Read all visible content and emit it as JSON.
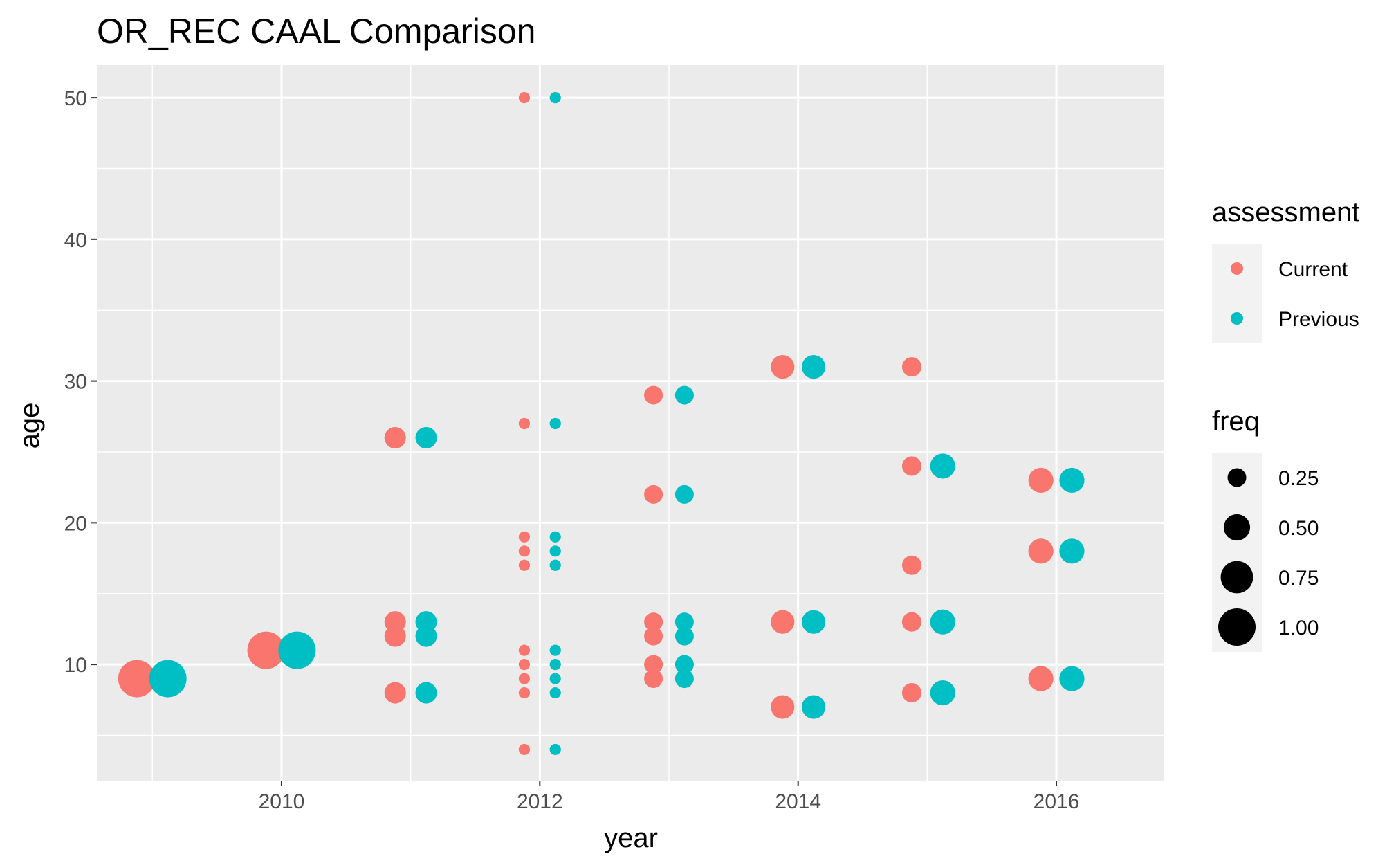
{
  "chart_data": {
    "type": "scatter",
    "title": "OR_REC CAAL Comparison",
    "xlabel": "year",
    "ylabel": "age",
    "xlim": [
      2008.57,
      2016.83
    ],
    "ylim": [
      1.8,
      52.3
    ],
    "x_ticks": [
      2010,
      2012,
      2014,
      2016
    ],
    "y_ticks": [
      10,
      20,
      30,
      40,
      50
    ],
    "grid": true,
    "legend_position": "right",
    "colors": {
      "Current": "#F8766D",
      "Previous": "#00BFC4",
      "panel": "#EBEBEB",
      "grid": "#FFFFFF"
    },
    "color_legend": {
      "title": "assessment",
      "entries": [
        "Current",
        "Previous"
      ]
    },
    "size_legend": {
      "title": "freq",
      "entries": [
        {
          "label": "0.25",
          "value": 0.25
        },
        {
          "label": "0.50",
          "value": 0.5
        },
        {
          "label": "0.75",
          "value": 0.75
        },
        {
          "label": "1.00",
          "value": 1.0
        }
      ]
    },
    "series": [
      {
        "name": "Current",
        "points": [
          {
            "x": 2008.88,
            "y": 9,
            "freq": 1.0
          },
          {
            "x": 2009.88,
            "y": 11,
            "freq": 1.0
          },
          {
            "x": 2010.88,
            "y": 26,
            "freq": 0.33
          },
          {
            "x": 2010.88,
            "y": 13,
            "freq": 0.33
          },
          {
            "x": 2010.88,
            "y": 12,
            "freq": 0.33
          },
          {
            "x": 2010.88,
            "y": 8,
            "freq": 0.33
          },
          {
            "x": 2011.88,
            "y": 50,
            "freq": 0.09
          },
          {
            "x": 2011.88,
            "y": 27,
            "freq": 0.09
          },
          {
            "x": 2011.88,
            "y": 19,
            "freq": 0.09
          },
          {
            "x": 2011.88,
            "y": 18,
            "freq": 0.09
          },
          {
            "x": 2011.88,
            "y": 17,
            "freq": 0.09
          },
          {
            "x": 2011.88,
            "y": 11,
            "freq": 0.09
          },
          {
            "x": 2011.88,
            "y": 10,
            "freq": 0.09
          },
          {
            "x": 2011.88,
            "y": 9,
            "freq": 0.09
          },
          {
            "x": 2011.88,
            "y": 8,
            "freq": 0.09
          },
          {
            "x": 2011.88,
            "y": 4,
            "freq": 0.09
          },
          {
            "x": 2012.88,
            "y": 29,
            "freq": 0.25
          },
          {
            "x": 2012.88,
            "y": 22,
            "freq": 0.25
          },
          {
            "x": 2012.88,
            "y": 13,
            "freq": 0.25
          },
          {
            "x": 2012.88,
            "y": 12,
            "freq": 0.25
          },
          {
            "x": 2012.88,
            "y": 10,
            "freq": 0.25
          },
          {
            "x": 2012.88,
            "y": 9,
            "freq": 0.25
          },
          {
            "x": 2013.88,
            "y": 31,
            "freq": 0.4
          },
          {
            "x": 2013.88,
            "y": 13,
            "freq": 0.4
          },
          {
            "x": 2013.88,
            "y": 7,
            "freq": 0.4
          },
          {
            "x": 2014.88,
            "y": 31,
            "freq": 0.27
          },
          {
            "x": 2014.88,
            "y": 24,
            "freq": 0.27
          },
          {
            "x": 2014.88,
            "y": 17,
            "freq": 0.27
          },
          {
            "x": 2014.88,
            "y": 13,
            "freq": 0.27
          },
          {
            "x": 2014.88,
            "y": 8,
            "freq": 0.27
          },
          {
            "x": 2015.88,
            "y": 23,
            "freq": 0.45
          },
          {
            "x": 2015.88,
            "y": 18,
            "freq": 0.45
          },
          {
            "x": 2015.88,
            "y": 9,
            "freq": 0.45
          }
        ]
      },
      {
        "name": "Previous",
        "points": [
          {
            "x": 2009.12,
            "y": 9,
            "freq": 1.0
          },
          {
            "x": 2010.12,
            "y": 11,
            "freq": 1.0
          },
          {
            "x": 2011.12,
            "y": 26,
            "freq": 0.33
          },
          {
            "x": 2011.12,
            "y": 13,
            "freq": 0.33
          },
          {
            "x": 2011.12,
            "y": 12,
            "freq": 0.33
          },
          {
            "x": 2011.12,
            "y": 8,
            "freq": 0.33
          },
          {
            "x": 2012.12,
            "y": 50,
            "freq": 0.09
          },
          {
            "x": 2012.12,
            "y": 27,
            "freq": 0.09
          },
          {
            "x": 2012.12,
            "y": 19,
            "freq": 0.09
          },
          {
            "x": 2012.12,
            "y": 18,
            "freq": 0.09
          },
          {
            "x": 2012.12,
            "y": 17,
            "freq": 0.09
          },
          {
            "x": 2012.12,
            "y": 11,
            "freq": 0.09
          },
          {
            "x": 2012.12,
            "y": 10,
            "freq": 0.09
          },
          {
            "x": 2012.12,
            "y": 9,
            "freq": 0.09
          },
          {
            "x": 2012.12,
            "y": 8,
            "freq": 0.09
          },
          {
            "x": 2012.12,
            "y": 4,
            "freq": 0.09
          },
          {
            "x": 2013.12,
            "y": 29,
            "freq": 0.25
          },
          {
            "x": 2013.12,
            "y": 22,
            "freq": 0.25
          },
          {
            "x": 2013.12,
            "y": 13,
            "freq": 0.25
          },
          {
            "x": 2013.12,
            "y": 12,
            "freq": 0.25
          },
          {
            "x": 2013.12,
            "y": 10,
            "freq": 0.25
          },
          {
            "x": 2013.12,
            "y": 9,
            "freq": 0.25
          },
          {
            "x": 2014.12,
            "y": 31,
            "freq": 0.4
          },
          {
            "x": 2014.12,
            "y": 13,
            "freq": 0.4
          },
          {
            "x": 2014.12,
            "y": 7,
            "freq": 0.4
          },
          {
            "x": 2015.12,
            "y": 24,
            "freq": 0.45
          },
          {
            "x": 2015.12,
            "y": 13,
            "freq": 0.45
          },
          {
            "x": 2015.12,
            "y": 8,
            "freq": 0.45
          },
          {
            "x": 2016.12,
            "y": 23,
            "freq": 0.45
          },
          {
            "x": 2016.12,
            "y": 18,
            "freq": 0.45
          },
          {
            "x": 2016.12,
            "y": 9,
            "freq": 0.45
          }
        ]
      }
    ]
  }
}
